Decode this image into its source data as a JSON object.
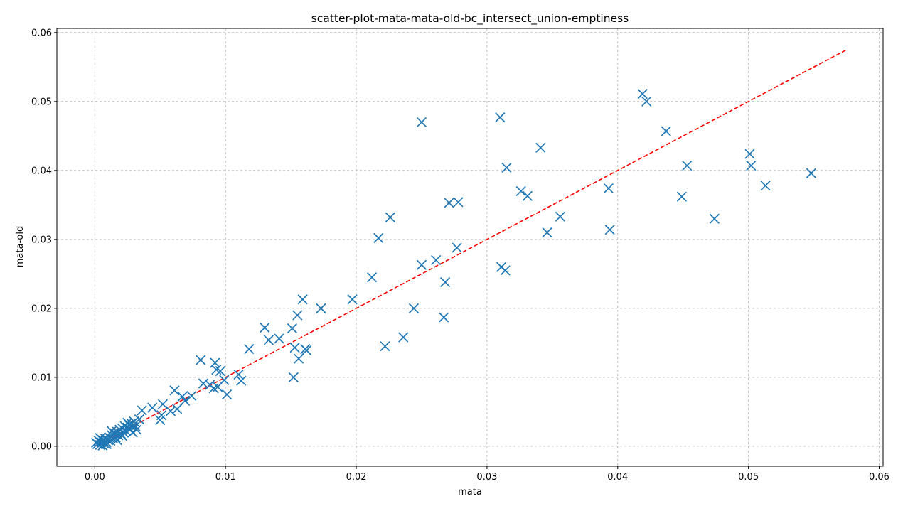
{
  "chart_data": {
    "type": "scatter",
    "title": "scatter-plot-mata-mata-old-bc_intersect_union-emptiness",
    "xlabel": "mata",
    "ylabel": "mata-old",
    "xlim": [
      -0.0029,
      0.0603
    ],
    "ylim": [
      -0.0029,
      0.0606
    ],
    "xticks": [
      0.0,
      0.01,
      0.02,
      0.03,
      0.04,
      0.05,
      0.06
    ],
    "yticks": [
      0.0,
      0.01,
      0.02,
      0.03,
      0.04,
      0.05,
      0.06
    ],
    "xtick_labels": [
      "0.00",
      "0.01",
      "0.02",
      "0.03",
      "0.04",
      "0.05",
      "0.06"
    ],
    "ytick_labels": [
      "0.00",
      "0.01",
      "0.02",
      "0.03",
      "0.04",
      "0.05",
      "0.06"
    ],
    "grid": true,
    "marker": "x",
    "marker_color": "#1f77b4",
    "reference_line": {
      "x": [
        0.0,
        0.0575
      ],
      "y": [
        0.0,
        0.0575
      ],
      "color": "#ff0000",
      "style": "dashed"
    },
    "points": [
      [
        0.0001,
        0.0005
      ],
      [
        0.0002,
        0.0003
      ],
      [
        0.0003,
        0.0008
      ],
      [
        0.0004,
        0.0002
      ],
      [
        0.0005,
        0.0006
      ],
      [
        0.0006,
        0.0001
      ],
      [
        0.0006,
        0.0009
      ],
      [
        0.0007,
        0.0004
      ],
      [
        0.0008,
        0.0011
      ],
      [
        0.0009,
        0.0006
      ],
      [
        0.001,
        0.0009
      ],
      [
        0.0011,
        0.0013
      ],
      [
        0.0012,
        0.0008
      ],
      [
        0.0013,
        0.0016
      ],
      [
        0.0014,
        0.0011
      ],
      [
        0.0015,
        0.0019
      ],
      [
        0.0016,
        0.0013
      ],
      [
        0.0017,
        0.0021
      ],
      [
        0.0018,
        0.0016
      ],
      [
        0.0019,
        0.0024
      ],
      [
        0.002,
        0.0018
      ],
      [
        0.0021,
        0.0026
      ],
      [
        0.0022,
        0.002
      ],
      [
        0.0023,
        0.0029
      ],
      [
        0.0024,
        0.0022
      ],
      [
        0.0025,
        0.0027
      ],
      [
        0.0026,
        0.0031
      ],
      [
        0.0027,
        0.0025
      ],
      [
        0.0028,
        0.0033
      ],
      [
        0.0029,
        0.0028
      ],
      [
        0.003,
        0.0036
      ],
      [
        0.0031,
        0.0029
      ],
      [
        0.0032,
        0.0024
      ],
      [
        0.0004,
        0.0012
      ],
      [
        0.0009,
        0.0003
      ],
      [
        0.0013,
        0.0022
      ],
      [
        0.0017,
        0.0009
      ],
      [
        0.0021,
        0.0015
      ],
      [
        0.0025,
        0.0034
      ],
      [
        0.0029,
        0.002
      ],
      [
        0.0034,
        0.0039
      ],
      [
        0.0036,
        0.0052
      ],
      [
        0.0044,
        0.0056
      ],
      [
        0.005,
        0.0038
      ],
      [
        0.0051,
        0.0045
      ],
      [
        0.0052,
        0.0061
      ],
      [
        0.0058,
        0.0051
      ],
      [
        0.0061,
        0.0081
      ],
      [
        0.0063,
        0.0054
      ],
      [
        0.0067,
        0.0072
      ],
      [
        0.0069,
        0.0066
      ],
      [
        0.0074,
        0.0073
      ],
      [
        0.0081,
        0.0125
      ],
      [
        0.0083,
        0.0091
      ],
      [
        0.0088,
        0.0089
      ],
      [
        0.0091,
        0.0084
      ],
      [
        0.0092,
        0.0121
      ],
      [
        0.0093,
        0.0111
      ],
      [
        0.0094,
        0.0086
      ],
      [
        0.0096,
        0.0109
      ],
      [
        0.0099,
        0.0096
      ],
      [
        0.0101,
        0.0075
      ],
      [
        0.011,
        0.0104
      ],
      [
        0.0112,
        0.0095
      ],
      [
        0.0118,
        0.0141
      ],
      [
        0.013,
        0.0172
      ],
      [
        0.0133,
        0.0154
      ],
      [
        0.0141,
        0.0156
      ],
      [
        0.0151,
        0.0171
      ],
      [
        0.0152,
        0.01
      ],
      [
        0.0153,
        0.0143
      ],
      [
        0.0155,
        0.019
      ],
      [
        0.0156,
        0.0127
      ],
      [
        0.0159,
        0.0213
      ],
      [
        0.0161,
        0.0141
      ],
      [
        0.0162,
        0.0139
      ],
      [
        0.0173,
        0.02
      ],
      [
        0.0197,
        0.0213
      ],
      [
        0.0212,
        0.0245
      ],
      [
        0.0217,
        0.0302
      ],
      [
        0.0222,
        0.0145
      ],
      [
        0.0226,
        0.0332
      ],
      [
        0.0236,
        0.0158
      ],
      [
        0.0244,
        0.02
      ],
      [
        0.025,
        0.0263
      ],
      [
        0.025,
        0.047
      ],
      [
        0.0261,
        0.027
      ],
      [
        0.0267,
        0.0187
      ],
      [
        0.0268,
        0.0238
      ],
      [
        0.0271,
        0.0353
      ],
      [
        0.0277,
        0.0288
      ],
      [
        0.0278,
        0.0354
      ],
      [
        0.031,
        0.0477
      ],
      [
        0.0311,
        0.026
      ],
      [
        0.0314,
        0.0255
      ],
      [
        0.0315,
        0.0404
      ],
      [
        0.0326,
        0.037
      ],
      [
        0.0331,
        0.0363
      ],
      [
        0.0341,
        0.0433
      ],
      [
        0.0346,
        0.031
      ],
      [
        0.0356,
        0.0333
      ],
      [
        0.0393,
        0.0374
      ],
      [
        0.0394,
        0.0314
      ],
      [
        0.0419,
        0.0511
      ],
      [
        0.0422,
        0.05
      ],
      [
        0.0437,
        0.0457
      ],
      [
        0.0449,
        0.0362
      ],
      [
        0.0453,
        0.0407
      ],
      [
        0.0474,
        0.033
      ],
      [
        0.0501,
        0.0424
      ],
      [
        0.0502,
        0.0407
      ],
      [
        0.0513,
        0.0378
      ],
      [
        0.0548,
        0.0396
      ]
    ]
  }
}
